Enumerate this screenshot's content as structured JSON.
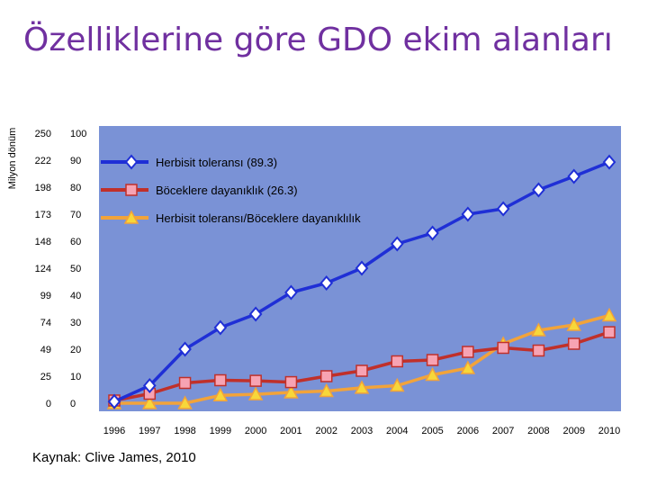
{
  "title": "Özelliklerine göre GDO ekim alanları",
  "source": "Kaynak: Clive James, 2010",
  "colors": {
    "title": "#7030a0",
    "plot_bg": "#7a92d6",
    "series": [
      "#1f2fd6",
      "#c0302a",
      "#f2a33a"
    ],
    "marker_fill": [
      "#ffffff",
      "#f7a3b3",
      "#f7d73a"
    ]
  },
  "chart_data": {
    "type": "line",
    "title": "Özelliklerine göre GDO ekim alanları",
    "ylabel": "Milyon dönüm",
    "xlabel": "",
    "x": [
      "1996",
      "1997",
      "1998",
      "1999",
      "2000",
      "2001",
      "2002",
      "2003",
      "2004",
      "2005",
      "2006",
      "2007",
      "2008",
      "2009",
      "2010"
    ],
    "ylim": [
      0,
      100
    ],
    "y_ticks": [
      0,
      10,
      20,
      30,
      40,
      50,
      60,
      70,
      80,
      90,
      100
    ],
    "y_ticks_secondary": [
      "0",
      "25",
      "49",
      "74",
      "99",
      "124",
      "148",
      "173",
      "198",
      "222",
      "250"
    ],
    "grid": false,
    "series": [
      {
        "name": "Herbisit toleransı (89.3)",
        "marker": "diamond",
        "values": [
          0.6,
          6.5,
          20,
          28,
          33,
          41,
          44.5,
          50,
          59,
          63,
          70,
          72,
          79,
          84,
          89.3
        ]
      },
      {
        "name": "Böceklere dayanıklık (26.3)",
        "marker": "square",
        "values": [
          1,
          3.5,
          7.5,
          8.5,
          8.3,
          7.8,
          10,
          12,
          15.5,
          16,
          19,
          20.5,
          19.5,
          22,
          26.3
        ]
      },
      {
        "name": "Herbisit toleransı/Böceklere dayanıklılık",
        "marker": "triangle",
        "values": [
          0,
          0,
          0,
          2.9,
          3.3,
          4,
          4.5,
          5.7,
          6.5,
          10.5,
          13,
          22,
          27,
          29,
          32.5
        ]
      }
    ]
  }
}
